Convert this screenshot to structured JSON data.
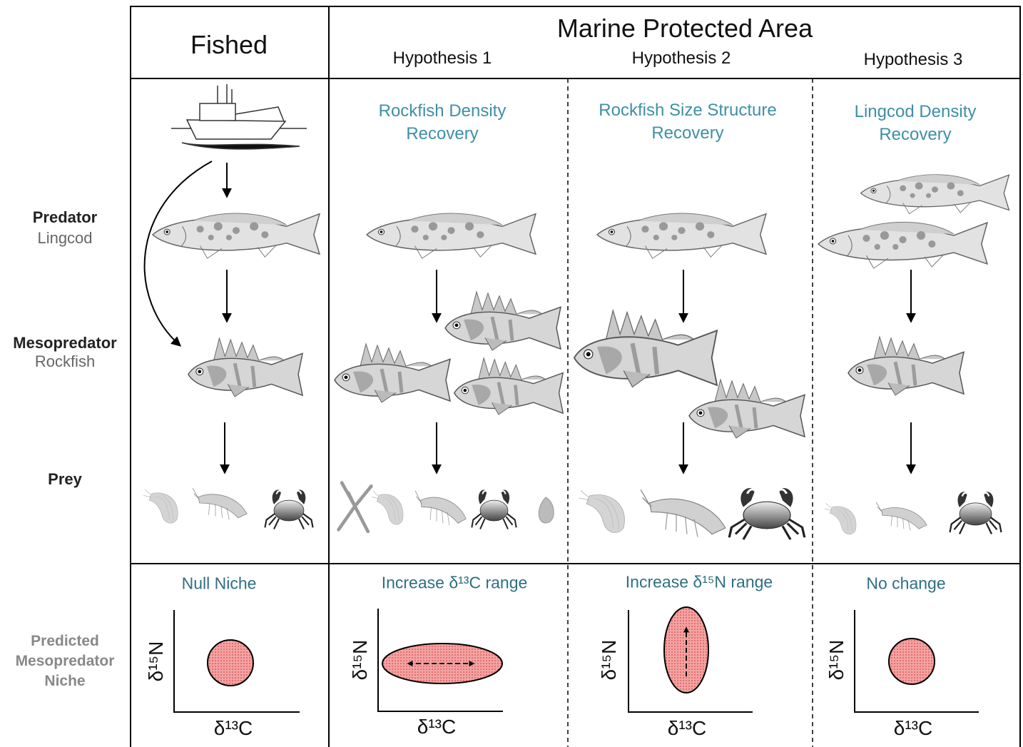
{
  "header": {
    "fished": "Fished",
    "mpa": "Marine Protected Area",
    "hypotheses": [
      "Hypothesis 1",
      "Hypothesis 2",
      "Hypothesis 3"
    ]
  },
  "rows": [
    {
      "title": "Predator",
      "subtitle": "Lingcod"
    },
    {
      "title": "Mesopredator",
      "subtitle": "Rockfish"
    },
    {
      "title": "Prey"
    },
    {
      "title": "Predicted Mesopredator Niche"
    }
  ],
  "scenarios": [
    "Rockfish Density Recovery",
    "Rockfish Size Structure Recovery",
    "Lingcod Density Recovery"
  ],
  "niches": [
    {
      "title": "Null Niche",
      "x_label": "δ¹³C",
      "y_label": "δ¹⁵N"
    },
    {
      "title": "Increase δ¹³C range",
      "x_label": "δ¹³C",
      "y_label": "δ¹⁵N"
    },
    {
      "title": "Increase δ¹⁵N range",
      "x_label": "δ¹³C",
      "y_label": "δ¹⁵N"
    },
    {
      "title": "No change",
      "x_label": "δ¹³C",
      "y_label": "δ¹⁵N"
    }
  ]
}
